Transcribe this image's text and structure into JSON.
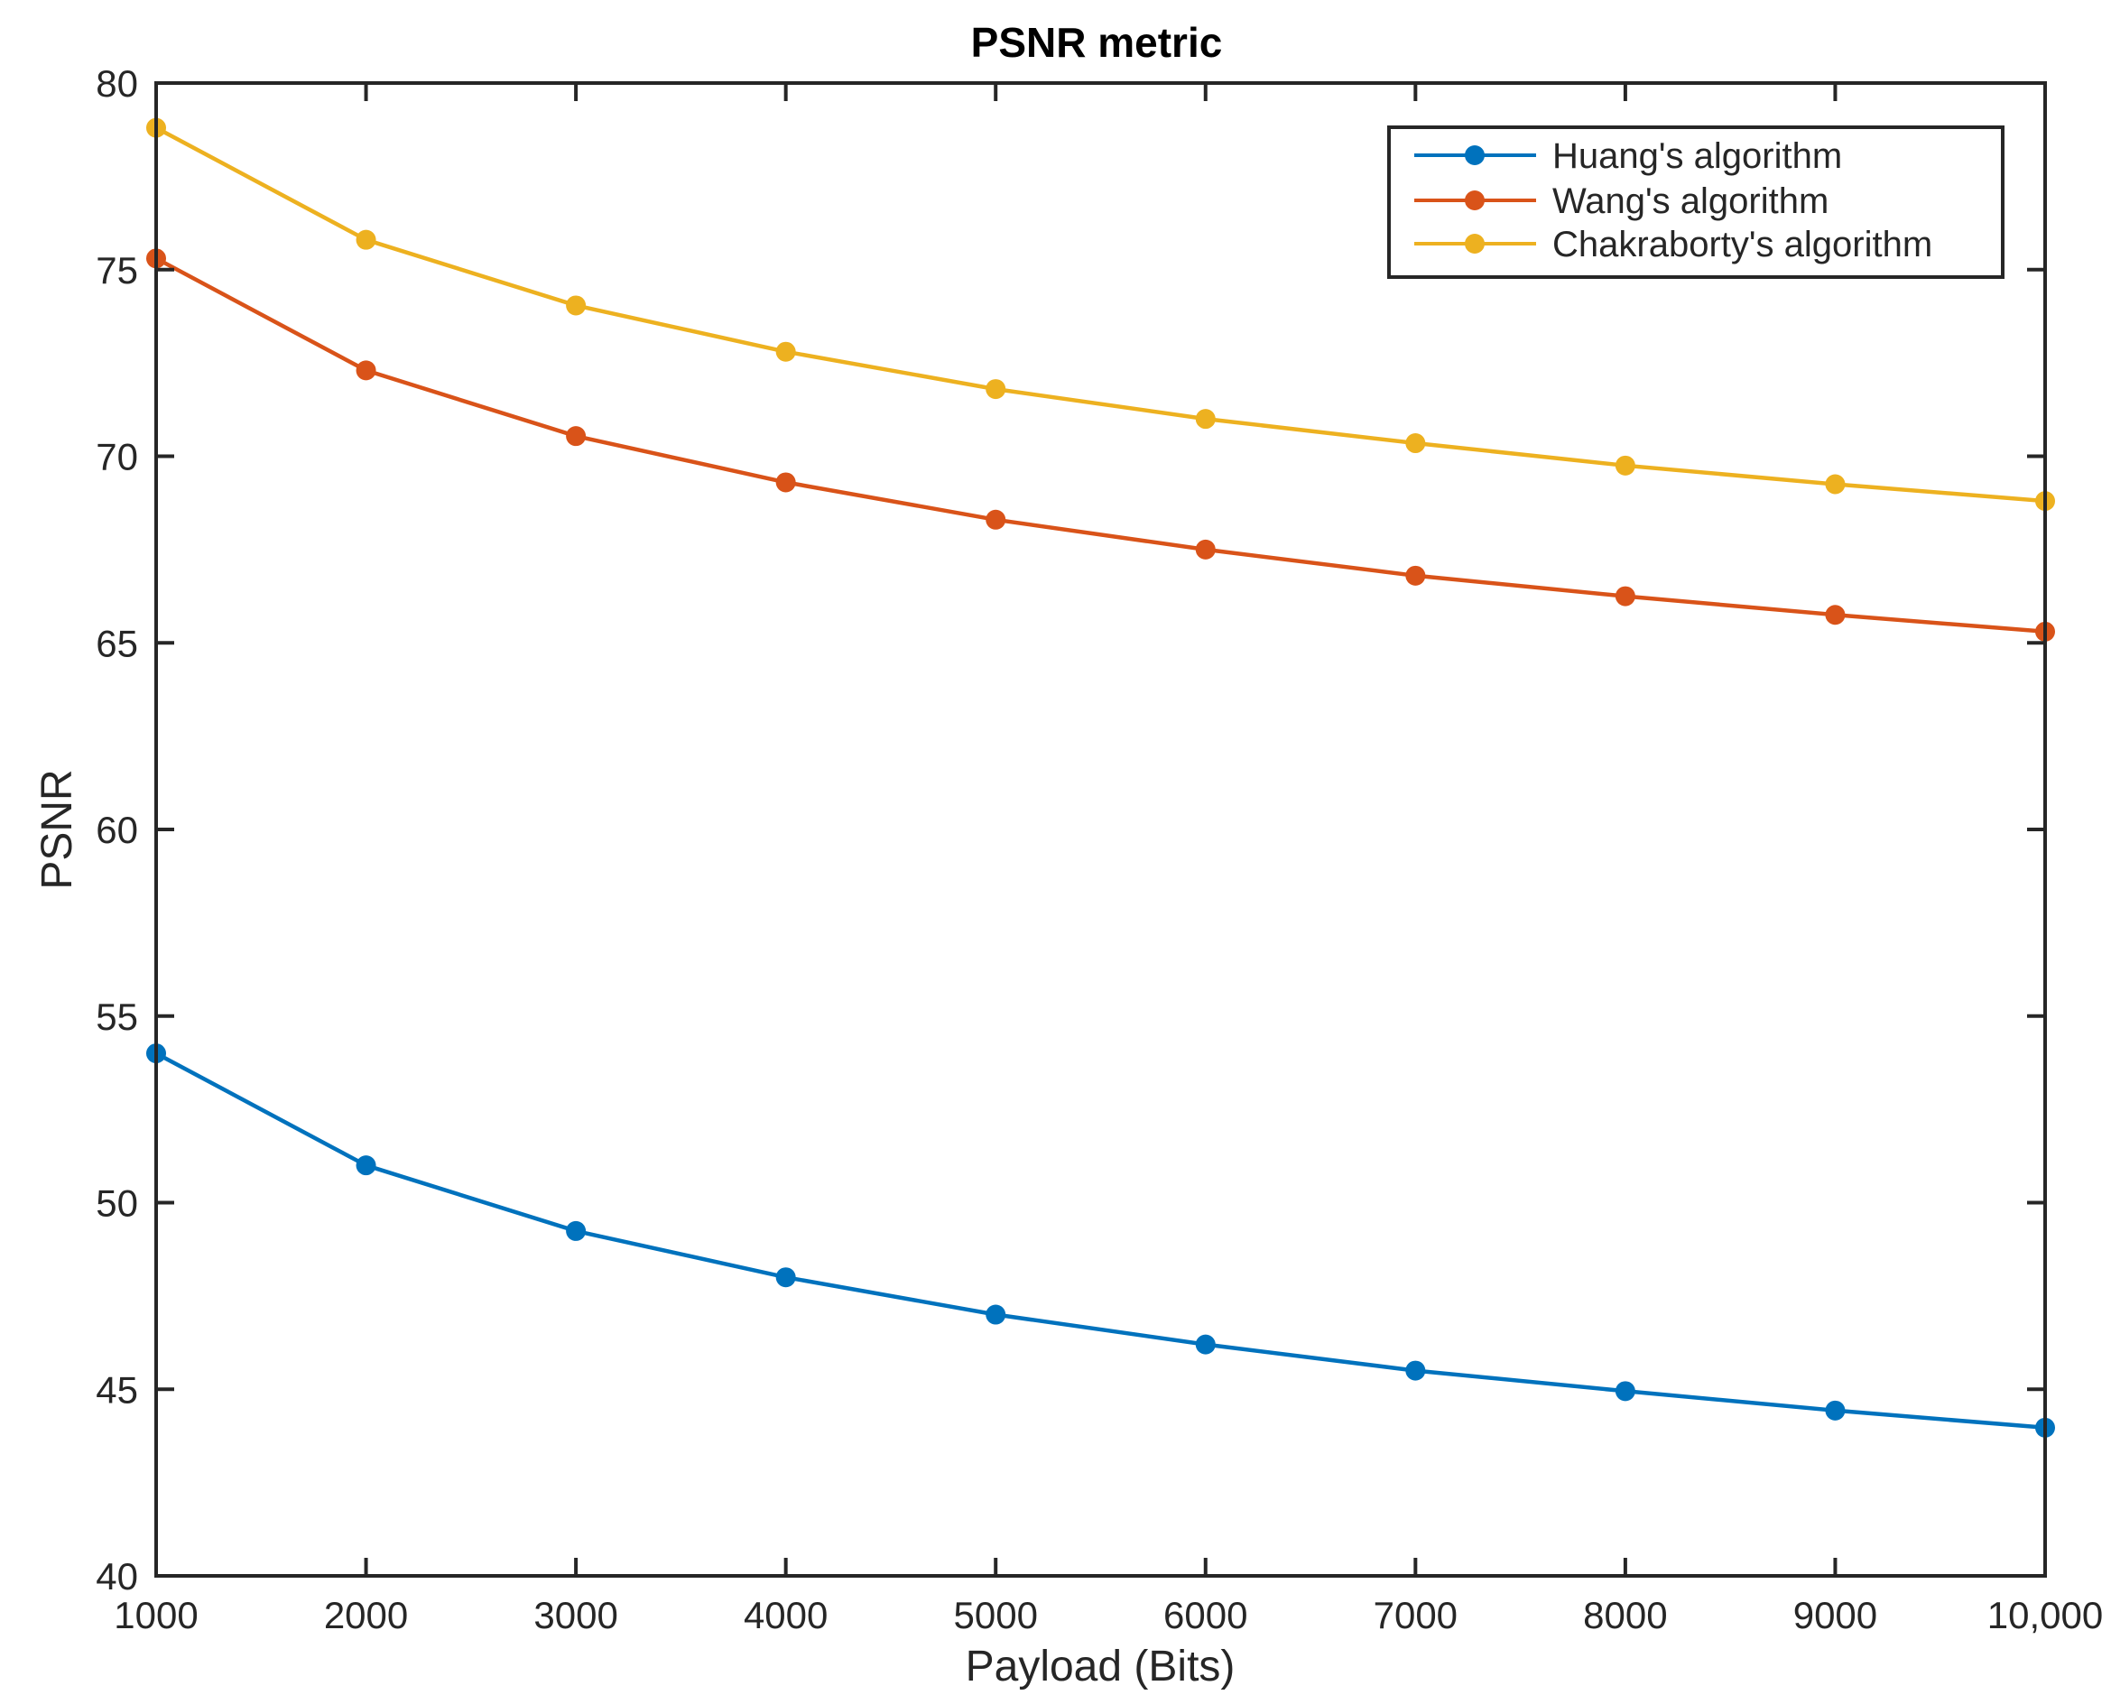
{
  "chart_data": {
    "type": "line",
    "title": "PSNR metric",
    "xlabel": "Payload (Bits)",
    "ylabel": "PSNR",
    "xlim": [
      1000,
      10000
    ],
    "ylim": [
      40,
      80
    ],
    "x": [
      1000,
      2000,
      3000,
      4000,
      5000,
      6000,
      7000,
      8000,
      9000,
      10000
    ],
    "x_tick_labels": [
      "1000",
      "2000",
      "3000",
      "4000",
      "5000",
      "6000",
      "7000",
      "8000",
      "9000",
      "10,000"
    ],
    "y_ticks": [
      40,
      45,
      50,
      55,
      60,
      65,
      70,
      75,
      80
    ],
    "y_tick_labels": [
      "40",
      "45",
      "50",
      "55",
      "60",
      "65",
      "70",
      "75",
      "80"
    ],
    "grid": false,
    "legend_position": "top-right",
    "series": [
      {
        "name": "Huang's algorithm",
        "color": "#0072BD",
        "values": [
          54.0,
          51.0,
          49.24,
          48.0,
          47.0,
          46.2,
          45.5,
          44.95,
          44.43,
          43.97
        ]
      },
      {
        "name": "Wang's algorithm",
        "color": "#D95319",
        "values": [
          75.3,
          72.3,
          70.54,
          69.3,
          68.3,
          67.5,
          66.8,
          66.25,
          65.75,
          65.3
        ]
      },
      {
        "name": "Chakraborty's algorithm",
        "color": "#EDB120",
        "values": [
          78.8,
          75.8,
          74.04,
          72.8,
          71.8,
          71.0,
          70.35,
          69.75,
          69.25,
          68.8
        ]
      }
    ]
  }
}
